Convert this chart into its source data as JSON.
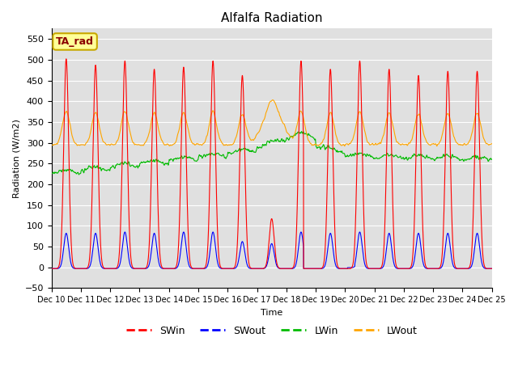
{
  "title": "Alfalfa Radiation",
  "ylabel": "Radiation (W/m2)",
  "xlabel": "Time",
  "annotation": "TA_rad",
  "ylim": [
    -50,
    575
  ],
  "yticks": [
    -50,
    0,
    50,
    100,
    150,
    200,
    250,
    300,
    350,
    400,
    450,
    500,
    550
  ],
  "xtick_labels": [
    "Dec 10",
    "Dec 11",
    "Dec 12",
    "Dec 13",
    "Dec 14",
    "Dec 15",
    "Dec 16",
    "Dec 17",
    "Dec 18",
    "Dec 19",
    "Dec 20",
    "Dec 21",
    "Dec 22",
    "Dec 23",
    "Dec 24",
    "Dec 25"
  ],
  "colors": {
    "SWin": "#FF0000",
    "SWout": "#0000FF",
    "LWin": "#00BB00",
    "LWout": "#FFA500"
  },
  "bg_color": "#E0E0E0",
  "grid_color": "#FFFFFF",
  "sw_peaks": [
    505,
    490,
    500,
    480,
    485,
    500,
    465,
    120,
    500,
    480,
    500,
    480,
    465,
    475,
    475
  ],
  "sw_out_peaks": [
    85,
    85,
    88,
    85,
    88,
    88,
    65,
    60,
    88,
    85,
    88,
    85,
    85,
    85,
    85
  ],
  "lwin_base": 250,
  "lwout_base": 295
}
